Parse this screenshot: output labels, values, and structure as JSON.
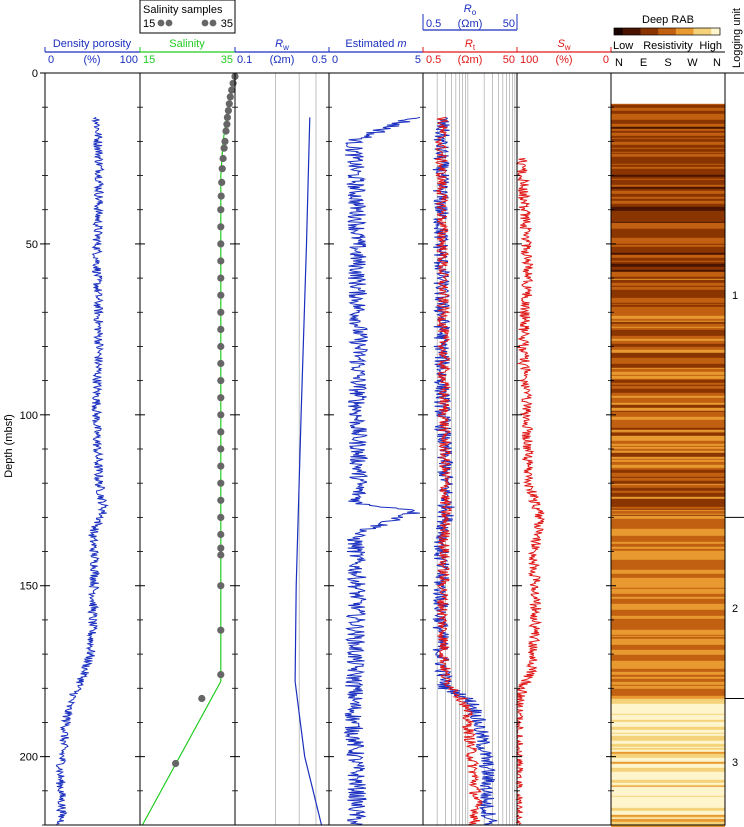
{
  "chart_data": {
    "type": "line",
    "y_axis": {
      "label": "Depth (mbsf)",
      "range": [
        0,
        220
      ],
      "ticks": [
        0,
        50,
        100,
        150,
        200
      ],
      "inverted": true
    },
    "tracks": [
      {
        "id": "density",
        "title": "Density porosity",
        "unit_label": "(%)",
        "scale_min_label": "0",
        "scale_max_label": "100",
        "xlim": [
          0,
          100
        ],
        "color": "#1a2fbf",
        "series": [
          {
            "style": "log",
            "depth": [
              13,
              20,
              30,
              40,
              50,
              60,
              70,
              80,
              90,
              100,
              110,
              120,
              128,
              135,
              145,
              160,
              170,
              178,
              185,
              195,
              205,
              215,
              220
            ],
            "values": [
              55,
              56,
              58,
              56,
              55,
              55,
              56,
              57,
              55,
              54,
              55,
              57,
              62,
              50,
              53,
              50,
              48,
              38,
              25,
              20,
              16,
              18,
              17
            ]
          }
        ]
      },
      {
        "id": "salinity",
        "title": "Salinity",
        "scale_min_label": "15",
        "scale_max_label": "35",
        "xlim": [
          15,
          35
        ],
        "color": "#22cc22",
        "header_above": {
          "title": "Salinity samples",
          "min_label": "15",
          "max_label": "35",
          "color": "#666666"
        },
        "series": [
          {
            "style": "line",
            "depth": [
              3,
              10,
              20,
              30,
              178,
              220
            ],
            "values": [
              34.5,
              33.5,
              32.5,
              32.0,
              32.0,
              15.5
            ]
          },
          {
            "style": "points",
            "depth": [
              1,
              3,
              5,
              7,
              9,
              11,
              13,
              15,
              17,
              20,
              22,
              25,
              28,
              32,
              36,
              40,
              45,
              50,
              55,
              60,
              65,
              70,
              75,
              80,
              85,
              90,
              95,
              100,
              105,
              110,
              115,
              120,
              125,
              130,
              135,
              139,
              141,
              150,
              163,
              176,
              183,
              202
            ],
            "values": [
              35,
              34.6,
              34.3,
              34.0,
              33.8,
              33.6,
              33.4,
              33.3,
              33.1,
              32.9,
              32.7,
              32.5,
              32.3,
              32.2,
              32.1,
              32.0,
              32.0,
              32.0,
              32.0,
              32.0,
              32.0,
              32.0,
              32.0,
              32.0,
              32.0,
              32.0,
              32.0,
              32.0,
              32.0,
              32.0,
              32.0,
              32.0,
              32.0,
              32.0,
              32.0,
              32.0,
              32.0,
              32.0,
              32.0,
              32.0,
              28.0,
              22.5
            ],
            "color": "#666666"
          }
        ]
      },
      {
        "id": "rw",
        "title": "R",
        "title_sub": "w",
        "unit_label": "(Ωm)",
        "scale_min_label": "0.1",
        "scale_max_label": "0.5",
        "xlim": [
          0.1,
          0.5
        ],
        "log_scale": true,
        "color": "#1a2fbf",
        "gridlines": [
          0.2,
          0.3,
          0.4
        ],
        "series": [
          {
            "style": "line",
            "depth": [
              13,
              50,
              100,
              150,
              178,
              200,
              220
            ],
            "values": [
              0.36,
              0.34,
              0.31,
              0.285,
              0.28,
              0.33,
              0.44
            ]
          }
        ]
      },
      {
        "id": "m",
        "title": "Estimated m",
        "scale_min_label": "0",
        "scale_max_label": "5",
        "xlim": [
          0,
          5
        ],
        "color": "#1a2fbf",
        "series": [
          {
            "style": "log",
            "depth": [
              13,
              20,
              40,
              60,
              80,
              100,
              120,
              126,
              128,
              135,
              150,
              170,
              190,
              210,
              220
            ],
            "values": [
              4.5,
              1.3,
              1.5,
              1.5,
              1.6,
              1.5,
              1.6,
              1.5,
              4.8,
              1.4,
              1.5,
              1.4,
              1.3,
              1.5,
              1.4
            ]
          }
        ]
      },
      {
        "id": "rt",
        "title": "R",
        "title_sub": "t",
        "unit_label": "(Ωm)",
        "scale_min_label": "0.5",
        "scale_max_label": "50",
        "xlim": [
          0.5,
          50
        ],
        "log_scale": true,
        "color": "#e01818",
        "header_above": {
          "title": "R",
          "title_sub": "o",
          "unit_label": "(Ωm)",
          "min_label": "0.5",
          "max_label": "50",
          "color": "#1a2fbf"
        },
        "series": [
          {
            "name": "R_o",
            "style": "log",
            "color": "#1a2fbf",
            "depth": [
              13,
              20,
              50,
              100,
              128,
              140,
              170,
              180,
              185,
              195,
              205,
              215,
              220
            ],
            "values": [
              1.3,
              1.2,
              1.2,
              1.3,
              1.6,
              1.2,
              1.2,
              1.5,
              6,
              9,
              12,
              11,
              15
            ]
          },
          {
            "name": "R_t",
            "style": "log",
            "color": "#e01818",
            "depth": [
              13,
              20,
              50,
              100,
              128,
              140,
              160,
              178,
              185,
              195,
              205,
              215,
              220
            ],
            "values": [
              1.3,
              1.2,
              1.3,
              1.4,
              1.5,
              1.4,
              1.3,
              1.5,
              4,
              5,
              6,
              7,
              6
            ]
          }
        ]
      },
      {
        "id": "sw",
        "title": "S",
        "title_sub": "w",
        "unit_label": "(%)",
        "scale_min_label": "100",
        "scale_max_label": "0",
        "xlim": [
          100,
          0
        ],
        "color": "#e01818",
        "series": [
          {
            "style": "log",
            "depth": [
              25,
              40,
              50,
              60,
              70,
              80,
              100,
              120,
              130,
              140,
              160,
              175,
              180,
              185,
              220
            ],
            "values": [
              95,
              92,
              90,
              88,
              92,
              93,
              90,
              88,
              75,
              82,
              80,
              85,
              95,
              99,
              100
            ]
          }
        ]
      },
      {
        "id": "rab",
        "title": "Deep RAB",
        "colorbar_low": "Low",
        "colorbar_mid": "Resistivity",
        "colorbar_high": "High",
        "azimuth_labels": [
          "N",
          "E",
          "S",
          "W",
          "N"
        ],
        "type": "image",
        "depth_range": [
          9,
          220
        ],
        "colormap": [
          "#1a0400",
          "#4a1400",
          "#8a3400",
          "#c06010",
          "#e89a30",
          "#f4d27a",
          "#fff5cc"
        ]
      },
      {
        "id": "units",
        "title": "Logging unit",
        "boundaries": [
          0,
          130,
          183,
          220
        ],
        "labels": [
          "1",
          "2",
          "3"
        ]
      }
    ]
  }
}
